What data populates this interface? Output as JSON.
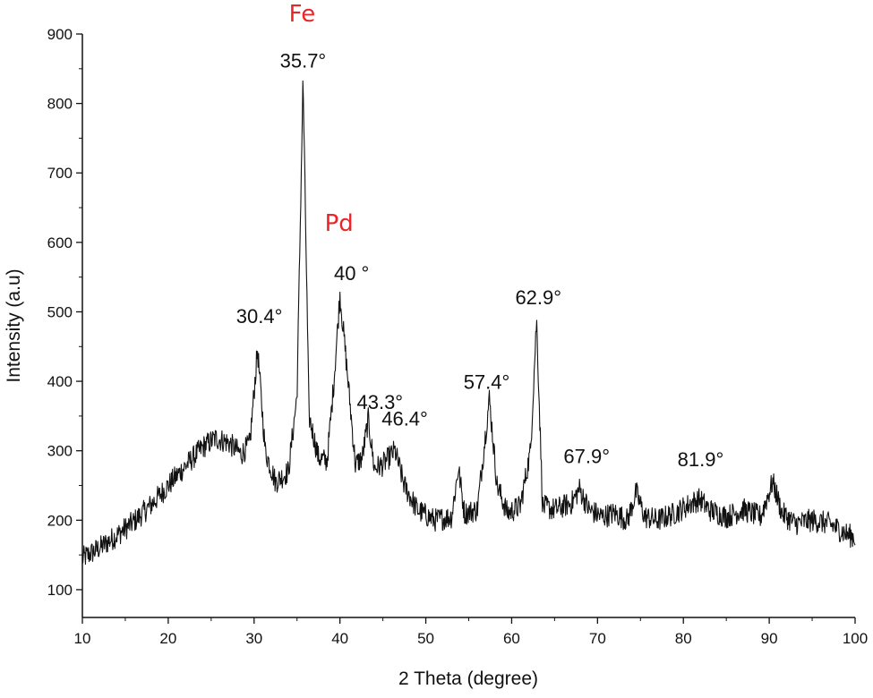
{
  "chart_data": {
    "type": "line",
    "xlabel": "2 Theta (degree)",
    "ylabel": "Intensity (a.u)",
    "xlim": [
      10,
      100
    ],
    "ylim": [
      60,
      900
    ],
    "x_ticks": [
      10,
      20,
      30,
      40,
      50,
      60,
      70,
      80,
      90,
      100
    ],
    "y_ticks": [
      100,
      200,
      300,
      400,
      500,
      600,
      700,
      800,
      900
    ],
    "grid": false,
    "colors": {
      "line": "#111111",
      "element_labels": "#e8262a"
    },
    "series": [
      {
        "x": [
          10,
          12,
          14,
          16,
          18,
          20,
          22,
          24,
          25.5,
          27,
          28.5,
          29.5,
          30.4,
          31.3,
          32.5,
          34,
          35,
          35.7,
          36.4,
          37.5,
          38.5,
          39.3,
          40,
          40.8,
          41.8,
          42.6,
          43.3,
          44,
          45,
          46.4,
          47.5,
          49,
          51,
          53,
          53.8,
          54.5,
          56,
          57.4,
          58.3,
          59.5,
          61,
          62.2,
          62.9,
          63.6,
          65,
          67,
          67.9,
          69,
          70.5,
          72,
          73.5,
          74.5,
          75.5,
          77,
          79,
          81,
          81.9,
          83,
          85,
          87,
          89,
          90.4,
          91.5,
          93,
          95,
          97,
          99,
          100
        ],
        "y": [
          145,
          160,
          178,
          198,
          222,
          250,
          278,
          305,
          318,
          312,
          295,
          310,
          445,
          300,
          255,
          270,
          380,
          835,
          350,
          290,
          285,
          400,
          525,
          420,
          280,
          290,
          345,
          275,
          280,
          300,
          250,
          215,
          200,
          205,
          275,
          210,
          215,
          375,
          250,
          210,
          220,
          300,
          490,
          220,
          215,
          225,
          245,
          215,
          205,
          210,
          200,
          240,
          205,
          200,
          210,
          225,
          230,
          215,
          205,
          215,
          205,
          255,
          210,
          195,
          200,
          195,
          180,
          175
        ]
      }
    ],
    "annotations": {
      "peaks": [
        {
          "text": "30.4°",
          "x": 30.4
        },
        {
          "text": "35.7°",
          "x": 35.7
        },
        {
          "text": "40 °",
          "x": 40.0
        },
        {
          "text": "43.3°",
          "x": 43.3
        },
        {
          "text": "46.4°",
          "x": 46.4
        },
        {
          "text": "57.4°",
          "x": 57.4
        },
        {
          "text": "62.9°",
          "x": 62.9
        },
        {
          "text": "67.9°",
          "x": 67.9
        },
        {
          "text": "81.9°",
          "x": 81.9
        }
      ],
      "elements": [
        {
          "text": "Fe",
          "x": 35.7
        },
        {
          "text": "Pd",
          "x": 40.0
        }
      ]
    }
  }
}
